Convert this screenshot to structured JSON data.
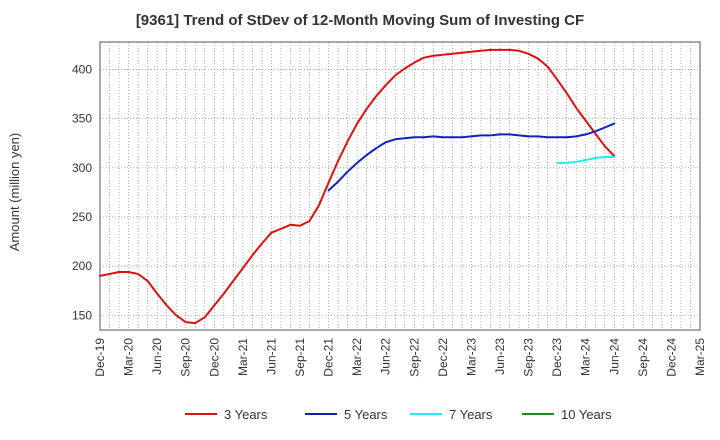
{
  "chart_data": {
    "type": "line",
    "title": "[9361]  Trend of StDev of 12-Month Moving Sum of Investing CF",
    "xlabel": "",
    "ylabel": "Amount (million yen)",
    "ylim": [
      135,
      428
    ],
    "yticks": [
      150,
      200,
      250,
      300,
      350,
      400
    ],
    "grid": true,
    "legend_position": "bottom",
    "x_labels": [
      "Dec-19",
      "Mar-20",
      "Jun-20",
      "Sep-20",
      "Dec-20",
      "Mar-21",
      "Jun-21",
      "Sep-21",
      "Dec-21",
      "Mar-22",
      "Jun-22",
      "Sep-22",
      "Dec-22",
      "Mar-23",
      "Jun-23",
      "Sep-23",
      "Dec-23",
      "Mar-24",
      "Jun-24",
      "Sep-24",
      "Dec-24",
      "Mar-25"
    ],
    "series": [
      {
        "name": "3 Years",
        "color": "#dd1111",
        "x": [
          "Dec-19",
          "Jan-20",
          "Feb-20",
          "Mar-20",
          "Apr-20",
          "May-20",
          "Jun-20",
          "Jul-20",
          "Aug-20",
          "Sep-20",
          "Oct-20",
          "Nov-20",
          "Dec-20",
          "Jan-21",
          "Feb-21",
          "Mar-21",
          "Apr-21",
          "May-21",
          "Jun-21",
          "Jul-21",
          "Aug-21",
          "Sep-21",
          "Oct-21",
          "Nov-21",
          "Dec-21",
          "Jan-22",
          "Feb-22",
          "Mar-22",
          "Apr-22",
          "May-22",
          "Jun-22",
          "Jul-22",
          "Aug-22",
          "Sep-22",
          "Oct-22",
          "Nov-22",
          "Dec-22",
          "Jan-23",
          "Feb-23",
          "Mar-23",
          "Apr-23",
          "May-23",
          "Jun-23",
          "Jul-23",
          "Aug-23",
          "Sep-23",
          "Oct-23",
          "Nov-23",
          "Dec-23",
          "Jan-24",
          "Feb-24",
          "Mar-24",
          "Apr-24",
          "May-24",
          "Jun-24"
        ],
        "values": [
          190,
          192,
          194,
          194,
          192,
          185,
          172,
          160,
          150,
          143,
          142,
          148,
          160,
          172,
          185,
          198,
          211,
          223,
          234,
          238,
          242,
          241,
          246,
          262,
          285,
          307,
          327,
          345,
          360,
          373,
          384,
          394,
          401,
          407,
          412,
          414,
          415,
          416,
          417,
          418,
          419,
          420,
          420,
          420,
          419,
          416,
          411,
          403,
          390,
          376,
          361,
          348,
          335,
          322,
          312
        ]
      },
      {
        "name": "5 Years",
        "color": "#1122bb",
        "x": [
          "Dec-21",
          "Jan-22",
          "Feb-22",
          "Mar-22",
          "Apr-22",
          "May-22",
          "Jun-22",
          "Jul-22",
          "Aug-22",
          "Sep-22",
          "Oct-22",
          "Nov-22",
          "Dec-22",
          "Jan-23",
          "Feb-23",
          "Mar-23",
          "Apr-23",
          "May-23",
          "Jun-23",
          "Jul-23",
          "Aug-23",
          "Sep-23",
          "Oct-23",
          "Nov-23",
          "Dec-23",
          "Jan-24",
          "Feb-24",
          "Mar-24",
          "Apr-24",
          "May-24",
          "Jun-24"
        ],
        "values": [
          277,
          286,
          296,
          305,
          313,
          320,
          326,
          329,
          330,
          331,
          331,
          332,
          331,
          331,
          331,
          332,
          333,
          333,
          334,
          334,
          333,
          332,
          332,
          331,
          331,
          331,
          332,
          334,
          337,
          341,
          345
        ]
      },
      {
        "name": "7 Years",
        "color": "#22eeee",
        "x": [
          "Dec-23",
          "Jan-24",
          "Feb-24",
          "Mar-24",
          "Apr-24",
          "May-24",
          "Jun-24"
        ],
        "values": [
          305,
          305,
          306,
          308,
          310,
          311,
          311
        ]
      },
      {
        "name": "10 Years",
        "color": "#228822",
        "x": [],
        "values": []
      }
    ]
  }
}
